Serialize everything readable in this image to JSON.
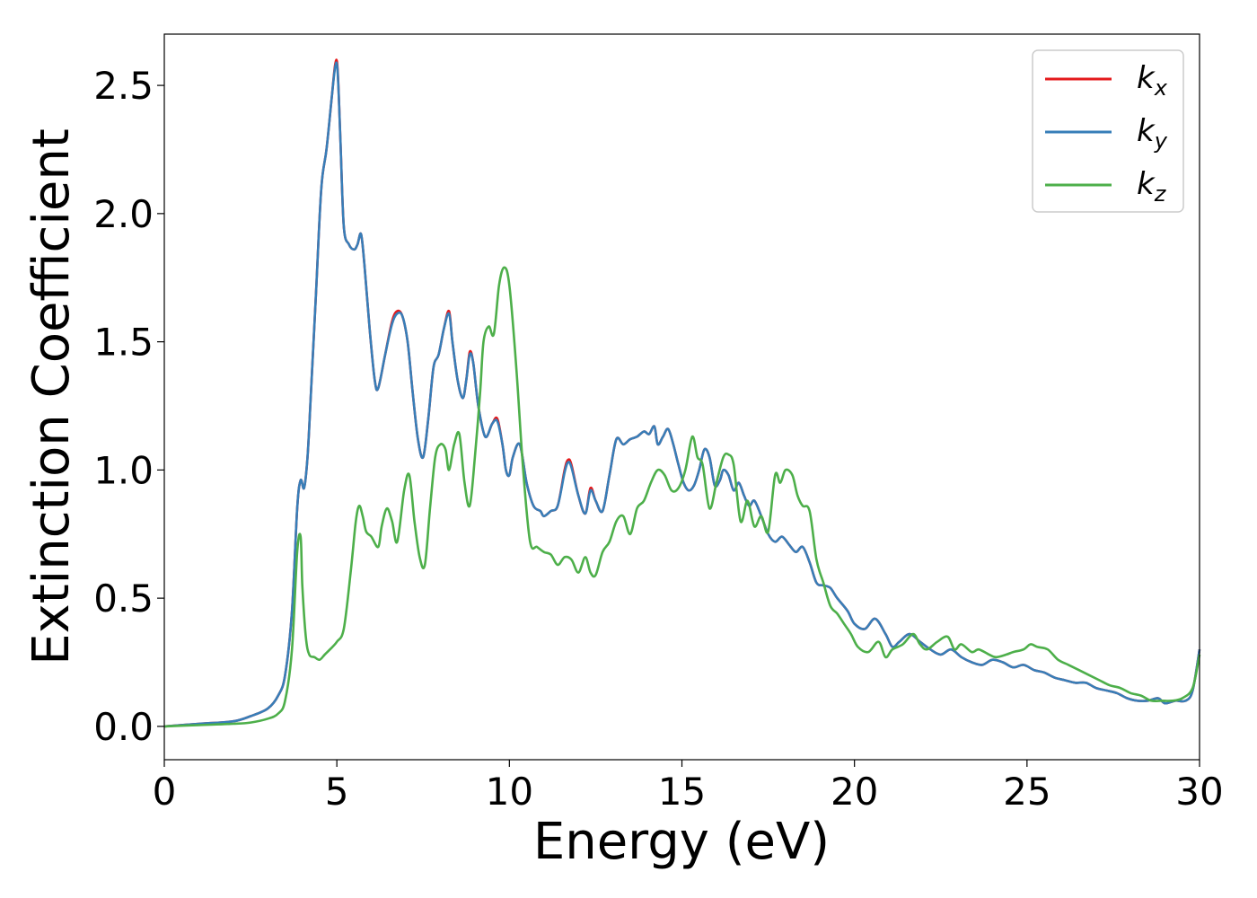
{
  "chart_data": {
    "type": "line",
    "title": "",
    "xlabel": "Energy (eV)",
    "ylabel": "Extinction Coefficient",
    "xlim": [
      0,
      30
    ],
    "ylim": [
      -0.13,
      2.7
    ],
    "xticks": [
      0,
      5,
      10,
      15,
      20,
      25,
      30
    ],
    "xtick_labels": [
      "0",
      "5",
      "10",
      "15",
      "20",
      "25",
      "30"
    ],
    "yticks": [
      0.0,
      0.5,
      1.0,
      1.5,
      2.0,
      2.5
    ],
    "ytick_labels": [
      "0.0",
      "0.5",
      "1.0",
      "1.5",
      "2.0",
      "2.5"
    ],
    "grid": false,
    "legend_position": "top-right",
    "series": [
      {
        "name": "k",
        "subscript": "x",
        "color": "#e41a1c",
        "x": [
          0,
          1,
          2,
          2.5,
          3,
          3.3,
          3.5,
          3.7,
          3.85,
          3.95,
          4.05,
          4.15,
          4.25,
          4.4,
          4.55,
          4.7,
          4.85,
          4.95,
          5.02,
          5.1,
          5.2,
          5.35,
          5.5,
          5.6,
          5.7,
          5.8,
          5.95,
          6.1,
          6.2,
          6.4,
          6.6,
          6.75,
          6.9,
          7.05,
          7.2,
          7.35,
          7.5,
          7.65,
          7.8,
          7.95,
          8.1,
          8.25,
          8.35,
          8.5,
          8.65,
          8.75,
          8.85,
          8.95,
          9.1,
          9.3,
          9.5,
          9.65,
          9.8,
          9.9,
          10.0,
          10.1,
          10.3,
          10.5,
          10.7,
          10.9,
          11.0,
          11.2,
          11.4,
          11.6,
          11.7,
          11.8,
          12.0,
          12.2,
          12.35,
          12.5,
          12.7,
          12.9,
          13.1,
          13.3,
          13.5,
          13.7,
          13.9,
          14.05,
          14.2,
          14.3,
          14.45,
          14.6,
          14.75,
          14.9,
          15.05,
          15.2,
          15.35,
          15.5,
          15.65,
          15.8,
          15.95,
          16.1,
          16.2,
          16.35,
          16.5,
          16.65,
          16.8,
          16.95,
          17.1,
          17.3,
          17.5,
          17.7,
          17.9,
          18.1,
          18.3,
          18.5,
          18.7,
          18.9,
          19.1,
          19.3,
          19.5,
          19.8,
          20.0,
          20.3,
          20.6,
          20.9,
          21.1,
          21.3,
          21.6,
          21.9,
          22.2,
          22.5,
          22.8,
          23.1,
          23.4,
          23.7,
          24.0,
          24.3,
          24.6,
          24.9,
          25.2,
          25.5,
          25.8,
          26.1,
          26.4,
          26.7,
          27.0,
          27.3,
          27.6,
          27.9,
          28.2,
          28.5,
          28.8,
          29.0,
          29.3,
          29.6,
          29.8,
          30.0
        ],
        "y": [
          0.0,
          0.01,
          0.02,
          0.04,
          0.07,
          0.12,
          0.2,
          0.45,
          0.85,
          0.96,
          0.93,
          1.05,
          1.3,
          1.7,
          2.1,
          2.25,
          2.45,
          2.58,
          2.57,
          2.3,
          1.95,
          1.88,
          1.86,
          1.88,
          1.92,
          1.8,
          1.55,
          1.35,
          1.32,
          1.45,
          1.58,
          1.62,
          1.6,
          1.5,
          1.3,
          1.12,
          1.05,
          1.2,
          1.4,
          1.45,
          1.55,
          1.62,
          1.5,
          1.35,
          1.28,
          1.35,
          1.46,
          1.42,
          1.25,
          1.13,
          1.18,
          1.2,
          1.1,
          1.0,
          0.98,
          1.05,
          1.1,
          0.95,
          0.86,
          0.84,
          0.82,
          0.84,
          0.86,
          1.0,
          1.04,
          1.02,
          0.9,
          0.83,
          0.93,
          0.88,
          0.84,
          0.98,
          1.12,
          1.1,
          1.12,
          1.13,
          1.15,
          1.14,
          1.17,
          1.1,
          1.13,
          1.16,
          1.1,
          1.02,
          0.95,
          0.92,
          0.94,
          1.0,
          1.08,
          1.05,
          0.94,
          0.96,
          1.0,
          0.98,
          0.92,
          0.95,
          0.9,
          0.86,
          0.88,
          0.82,
          0.75,
          0.72,
          0.74,
          0.71,
          0.68,
          0.7,
          0.64,
          0.56,
          0.55,
          0.54,
          0.5,
          0.45,
          0.4,
          0.38,
          0.42,
          0.36,
          0.31,
          0.33,
          0.36,
          0.33,
          0.3,
          0.28,
          0.3,
          0.27,
          0.25,
          0.24,
          0.26,
          0.25,
          0.23,
          0.24,
          0.22,
          0.21,
          0.19,
          0.18,
          0.17,
          0.17,
          0.15,
          0.14,
          0.13,
          0.11,
          0.1,
          0.1,
          0.11,
          0.09,
          0.1,
          0.1,
          0.14,
          0.3
        ]
      },
      {
        "name": "k",
        "subscript": "y",
        "color": "#377eb8",
        "x": [
          0,
          1,
          2,
          2.5,
          3,
          3.3,
          3.5,
          3.7,
          3.85,
          3.95,
          4.05,
          4.15,
          4.25,
          4.4,
          4.55,
          4.7,
          4.85,
          4.95,
          5.02,
          5.1,
          5.2,
          5.35,
          5.5,
          5.6,
          5.7,
          5.8,
          5.95,
          6.1,
          6.2,
          6.4,
          6.6,
          6.75,
          6.9,
          7.05,
          7.2,
          7.35,
          7.5,
          7.65,
          7.8,
          7.95,
          8.1,
          8.25,
          8.35,
          8.5,
          8.65,
          8.75,
          8.85,
          8.95,
          9.1,
          9.3,
          9.5,
          9.65,
          9.8,
          9.9,
          10.0,
          10.1,
          10.3,
          10.5,
          10.7,
          10.9,
          11.0,
          11.2,
          11.4,
          11.6,
          11.7,
          11.8,
          12.0,
          12.2,
          12.35,
          12.5,
          12.7,
          12.9,
          13.1,
          13.3,
          13.5,
          13.7,
          13.9,
          14.05,
          14.2,
          14.3,
          14.45,
          14.6,
          14.75,
          14.9,
          15.05,
          15.2,
          15.35,
          15.5,
          15.65,
          15.8,
          15.95,
          16.1,
          16.2,
          16.35,
          16.5,
          16.65,
          16.8,
          16.95,
          17.1,
          17.3,
          17.5,
          17.7,
          17.9,
          18.1,
          18.3,
          18.5,
          18.7,
          18.9,
          19.1,
          19.3,
          19.5,
          19.8,
          20.0,
          20.3,
          20.6,
          20.9,
          21.1,
          21.3,
          21.6,
          21.9,
          22.2,
          22.5,
          22.8,
          23.1,
          23.4,
          23.7,
          24.0,
          24.3,
          24.6,
          24.9,
          25.2,
          25.5,
          25.8,
          26.1,
          26.4,
          26.7,
          27.0,
          27.3,
          27.6,
          27.9,
          28.2,
          28.5,
          28.8,
          29.0,
          29.3,
          29.6,
          29.8,
          30.0
        ],
        "y": [
          0.0,
          0.01,
          0.02,
          0.04,
          0.07,
          0.12,
          0.2,
          0.45,
          0.85,
          0.96,
          0.93,
          1.05,
          1.3,
          1.7,
          2.1,
          2.25,
          2.45,
          2.57,
          2.56,
          2.3,
          1.95,
          1.88,
          1.86,
          1.88,
          1.92,
          1.8,
          1.55,
          1.35,
          1.32,
          1.45,
          1.57,
          1.61,
          1.6,
          1.5,
          1.3,
          1.12,
          1.05,
          1.2,
          1.4,
          1.45,
          1.55,
          1.61,
          1.5,
          1.35,
          1.28,
          1.35,
          1.45,
          1.42,
          1.25,
          1.13,
          1.18,
          1.19,
          1.1,
          1.0,
          0.98,
          1.05,
          1.1,
          0.95,
          0.86,
          0.84,
          0.82,
          0.84,
          0.86,
          0.99,
          1.03,
          1.01,
          0.9,
          0.83,
          0.92,
          0.88,
          0.84,
          0.98,
          1.12,
          1.1,
          1.12,
          1.13,
          1.15,
          1.14,
          1.17,
          1.1,
          1.13,
          1.16,
          1.1,
          1.02,
          0.95,
          0.92,
          0.94,
          1.0,
          1.08,
          1.05,
          0.94,
          0.96,
          1.0,
          0.98,
          0.92,
          0.95,
          0.9,
          0.86,
          0.88,
          0.82,
          0.75,
          0.72,
          0.74,
          0.71,
          0.68,
          0.7,
          0.64,
          0.56,
          0.55,
          0.54,
          0.5,
          0.45,
          0.4,
          0.38,
          0.42,
          0.36,
          0.31,
          0.33,
          0.36,
          0.33,
          0.3,
          0.28,
          0.3,
          0.27,
          0.25,
          0.24,
          0.26,
          0.25,
          0.23,
          0.24,
          0.22,
          0.21,
          0.19,
          0.18,
          0.17,
          0.17,
          0.15,
          0.14,
          0.13,
          0.11,
          0.1,
          0.1,
          0.11,
          0.09,
          0.1,
          0.1,
          0.14,
          0.3
        ]
      },
      {
        "name": "k",
        "subscript": "z",
        "color": "#4daf4a",
        "x": [
          0,
          1,
          2,
          2.5,
          3,
          3.3,
          3.5,
          3.7,
          3.85,
          3.95,
          4.0,
          4.1,
          4.2,
          4.35,
          4.5,
          4.65,
          4.8,
          5.0,
          5.2,
          5.4,
          5.55,
          5.65,
          5.75,
          5.85,
          6.0,
          6.2,
          6.3,
          6.45,
          6.6,
          6.75,
          6.95,
          7.1,
          7.25,
          7.4,
          7.55,
          7.7,
          7.85,
          8.0,
          8.15,
          8.25,
          8.4,
          8.55,
          8.7,
          8.85,
          9.0,
          9.15,
          9.25,
          9.4,
          9.55,
          9.7,
          9.85,
          10.0,
          10.2,
          10.4,
          10.6,
          10.8,
          11.0,
          11.2,
          11.4,
          11.6,
          11.8,
          12.0,
          12.2,
          12.35,
          12.5,
          12.7,
          12.9,
          13.1,
          13.3,
          13.5,
          13.7,
          13.9,
          14.1,
          14.3,
          14.5,
          14.7,
          14.9,
          15.1,
          15.3,
          15.45,
          15.6,
          15.8,
          16.0,
          16.2,
          16.35,
          16.5,
          16.7,
          16.9,
          17.1,
          17.3,
          17.5,
          17.7,
          17.85,
          18.0,
          18.2,
          18.35,
          18.5,
          18.7,
          18.9,
          19.1,
          19.3,
          19.5,
          19.7,
          19.9,
          20.1,
          20.4,
          20.7,
          20.9,
          21.1,
          21.4,
          21.7,
          21.9,
          22.1,
          22.4,
          22.7,
          22.9,
          23.1,
          23.4,
          23.6,
          23.9,
          24.1,
          24.4,
          24.6,
          24.9,
          25.1,
          25.3,
          25.6,
          25.9,
          26.2,
          26.5,
          26.8,
          27.1,
          27.4,
          27.7,
          28.0,
          28.3,
          28.6,
          28.9,
          29.2,
          29.5,
          29.8,
          30.0
        ],
        "y": [
          0.0,
          0.005,
          0.01,
          0.015,
          0.03,
          0.05,
          0.1,
          0.3,
          0.68,
          0.74,
          0.55,
          0.35,
          0.28,
          0.27,
          0.26,
          0.28,
          0.3,
          0.33,
          0.38,
          0.6,
          0.8,
          0.86,
          0.82,
          0.76,
          0.74,
          0.7,
          0.78,
          0.85,
          0.8,
          0.72,
          0.92,
          0.98,
          0.8,
          0.66,
          0.63,
          0.85,
          1.05,
          1.1,
          1.08,
          1.0,
          1.1,
          1.14,
          0.95,
          0.86,
          1.05,
          1.3,
          1.5,
          1.56,
          1.53,
          1.72,
          1.79,
          1.72,
          1.4,
          1.0,
          0.72,
          0.7,
          0.68,
          0.67,
          0.63,
          0.66,
          0.65,
          0.6,
          0.66,
          0.6,
          0.59,
          0.68,
          0.72,
          0.8,
          0.82,
          0.75,
          0.85,
          0.88,
          0.95,
          1.0,
          0.98,
          0.92,
          0.93,
          1.0,
          1.13,
          1.05,
          1.02,
          0.85,
          0.95,
          1.05,
          1.06,
          1.02,
          0.8,
          0.88,
          0.78,
          0.82,
          0.76,
          0.98,
          0.95,
          1.0,
          0.98,
          0.9,
          0.86,
          0.84,
          0.65,
          0.56,
          0.47,
          0.44,
          0.4,
          0.36,
          0.31,
          0.29,
          0.33,
          0.27,
          0.3,
          0.32,
          0.36,
          0.32,
          0.3,
          0.33,
          0.35,
          0.3,
          0.32,
          0.29,
          0.3,
          0.28,
          0.27,
          0.28,
          0.29,
          0.3,
          0.32,
          0.31,
          0.3,
          0.26,
          0.24,
          0.22,
          0.2,
          0.18,
          0.16,
          0.15,
          0.13,
          0.12,
          0.1,
          0.1,
          0.1,
          0.11,
          0.15,
          0.28
        ]
      }
    ]
  }
}
